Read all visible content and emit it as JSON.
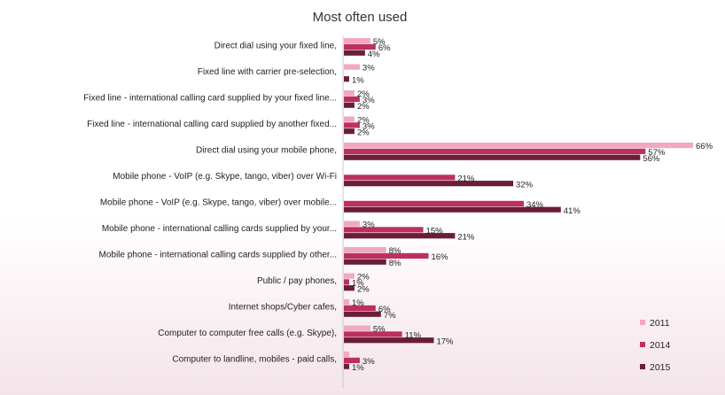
{
  "chart_data": {
    "type": "bar",
    "orientation": "horizontal",
    "title": "Most often used",
    "categories": [
      "Direct dial using your fixed line,",
      "Fixed line with carrier pre-selection,",
      "Fixed line - international calling card supplied by your fixed line...",
      "Fixed line - international calling card supplied by another fixed...",
      "Direct dial using your mobile phone,",
      "Mobile phone - VoIP (e.g. Skype, tango, viber) over Wi-Fi",
      "Mobile phone - VoIP (e.g. Skype, tango, viber) over mobile...",
      "Mobile phone - international calling cards supplied by your...",
      "Mobile phone - international calling cards supplied by other...",
      "Public / pay phones,",
      "Internet shops/Cyber cafes,",
      "Computer to computer free calls (e.g. Skype),",
      "Computer to landline, mobiles - paid calls,"
    ],
    "series": [
      {
        "name": "2011",
        "color": "#f2a7c3",
        "values": [
          5,
          3,
          2,
          2,
          66,
          null,
          null,
          3,
          8,
          2,
          1,
          5,
          1
        ],
        "labels": [
          "5%",
          "3%",
          "2%",
          "2%",
          "66%",
          "",
          "",
          "3%",
          "8%",
          "2%",
          "1%",
          "5%",
          ""
        ]
      },
      {
        "name": "2014",
        "color": "#bd2f5f",
        "values": [
          6,
          null,
          3,
          3,
          57,
          21,
          34,
          15,
          16,
          1,
          6,
          11,
          3
        ],
        "labels": [
          "6%",
          "",
          "3%",
          "3%",
          "57%",
          "21%",
          "34%",
          "15%",
          "16%",
          "1%",
          "6%",
          "11%",
          "3%"
        ]
      },
      {
        "name": "2015",
        "color": "#6a1f35",
        "values": [
          4,
          1,
          2,
          2,
          56,
          32,
          41,
          21,
          8,
          2,
          7,
          17,
          1
        ],
        "labels": [
          "4%",
          "1%",
          "2%",
          "2%",
          "56%",
          "32%",
          "41%",
          "21%",
          "8%",
          "2%",
          "7%",
          "17%",
          "1%"
        ]
      }
    ],
    "xlim": [
      0,
      70
    ],
    "grid": false,
    "legend": "bottom-right"
  }
}
